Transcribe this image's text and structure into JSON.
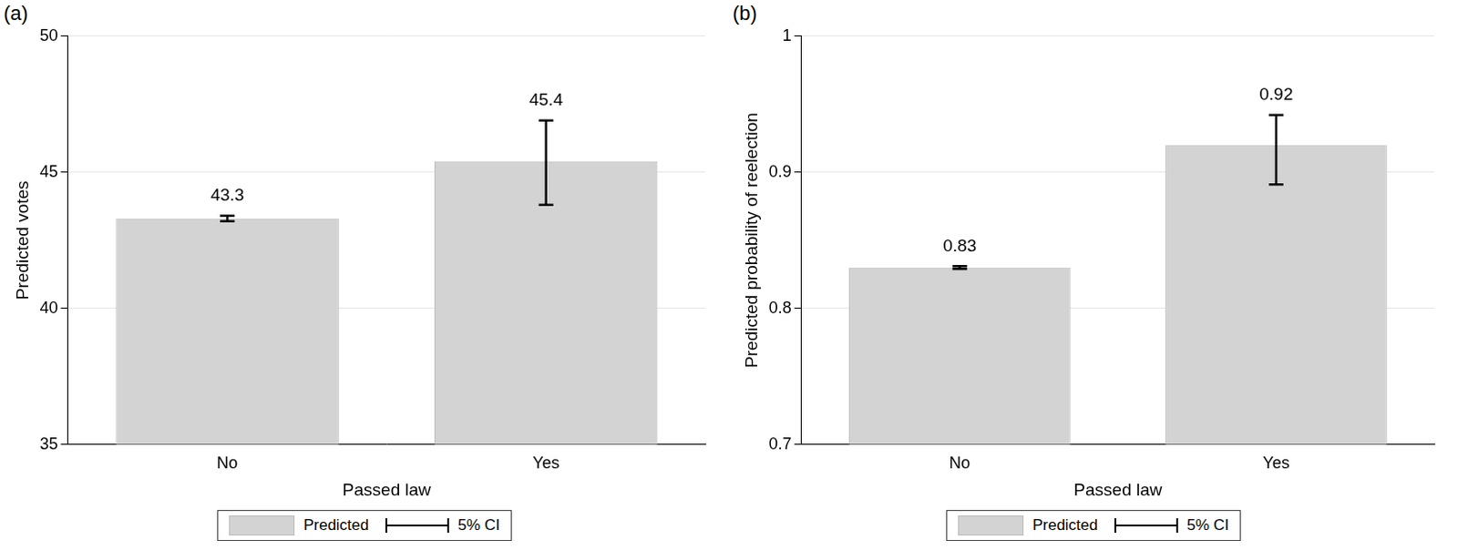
{
  "chart_data": [
    {
      "type": "bar",
      "title": "(a)",
      "x_label": "Passed law",
      "y_label": "Predicted votes",
      "categories": [
        "No",
        "Yes"
      ],
      "series": [
        {
          "name": "Predicted",
          "color": "#d3d3d3",
          "values": [
            43.3,
            45.4
          ]
        }
      ],
      "error_bars": {
        "name": "5% CI",
        "color": "#000000",
        "lower": [
          43.2,
          43.8
        ],
        "upper": [
          43.4,
          46.9
        ]
      },
      "ylim": [
        35,
        50
      ],
      "yticks": [
        35,
        40,
        45,
        50
      ],
      "grid": true,
      "data_labels": true,
      "legend": "bottom"
    },
    {
      "type": "bar",
      "title": "(b)",
      "x_label": "Passed law",
      "y_label": "Predicted probability of reelection",
      "categories": [
        "No",
        "Yes"
      ],
      "series": [
        {
          "name": "Predicted",
          "color": "#d3d3d3",
          "values": [
            0.83,
            0.92
          ]
        }
      ],
      "error_bars": {
        "name": "5% CI",
        "color": "#000000",
        "lower": [
          0.829,
          0.891
        ],
        "upper": [
          0.831,
          0.942
        ]
      },
      "ylim": [
        0.7,
        1
      ],
      "yticks": [
        0.7,
        0.8,
        0.9,
        1
      ],
      "grid": true,
      "data_labels": true,
      "legend": "bottom"
    }
  ]
}
